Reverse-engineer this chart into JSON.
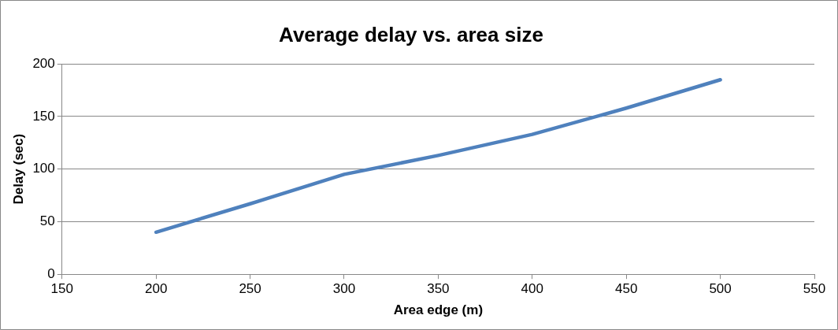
{
  "chart_data": {
    "type": "line",
    "title": "Average delay vs. area size",
    "xlabel": "Area edge (m)",
    "ylabel": "Delay (sec)",
    "x": [
      200,
      250,
      300,
      350,
      400,
      450,
      500
    ],
    "series": [
      {
        "color": "#4f81bd",
        "values": [
          40,
          67,
          95,
          113,
          133,
          158,
          185
        ]
      }
    ],
    "xlim": [
      150,
      550
    ],
    "xticks": [
      150,
      200,
      250,
      300,
      350,
      400,
      450,
      500,
      550
    ],
    "ylim": [
      0,
      200
    ],
    "yticks": [
      0,
      50,
      100,
      150,
      200
    ],
    "grid": "y",
    "legend": false,
    "marker": "none",
    "line_style": "solid"
  }
}
